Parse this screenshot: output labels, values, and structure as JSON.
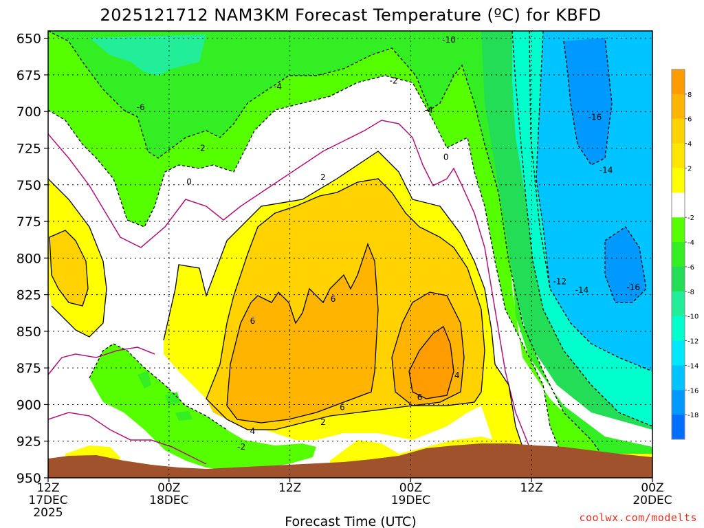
{
  "chart_data": {
    "type": "heatmap",
    "title": "2025121712 NAM3KM Forecast Temperature (ºC) for KBFD",
    "xlabel": "Forecast Time (UTC)",
    "ylabel": "",
    "y_reversed": true,
    "ylim": [
      950,
      645
    ],
    "y_ticks": [
      650,
      675,
      700,
      725,
      750,
      775,
      800,
      825,
      850,
      875,
      900,
      925,
      950
    ],
    "xlim_hours": [
      0,
      60
    ],
    "x_ticks": [
      {
        "h": 0,
        "line1": "12Z",
        "line2": "17DEC",
        "line3": "2025"
      },
      {
        "h": 12,
        "line1": "00Z",
        "line2": "18DEC",
        "line3": ""
      },
      {
        "h": 24,
        "line1": "12Z",
        "line2": "",
        "line3": ""
      },
      {
        "h": 36,
        "line1": "00Z",
        "line2": "19DEC",
        "line3": ""
      },
      {
        "h": 48,
        "line1": "12Z",
        "line2": "",
        "line3": ""
      },
      {
        "h": 60,
        "line1": "00Z",
        "line2": "20DEC",
        "line3": ""
      }
    ],
    "grid": true,
    "colorbar": {
      "position": "right",
      "labels": [
        8,
        6,
        4,
        2,
        -2,
        -4,
        -6,
        -8,
        -10,
        -12,
        -14,
        -16,
        -18
      ],
      "colors": [
        "#ff9c00",
        "#ffb400",
        "#ffd200",
        "#ffe600",
        "#ffff00",
        "#ffffff",
        "#55ff00",
        "#33ee22",
        "#22dd55",
        "#22ee99",
        "#00ffcc",
        "#00e8ff",
        "#00c4ff",
        "#0099ff",
        "#006eff"
      ]
    },
    "contour_labels": [
      {
        "text": "-10",
        "h": 39.8,
        "p": 651
      },
      {
        "text": "-6",
        "h": 9.2,
        "p": 697
      },
      {
        "text": "-4",
        "h": 22.8,
        "p": 683
      },
      {
        "text": "-2",
        "h": 34.3,
        "p": 679
      },
      {
        "text": "-4",
        "h": 37.8,
        "p": 699
      },
      {
        "text": "-2",
        "h": 15.2,
        "p": 725
      },
      {
        "text": "0",
        "h": 14.0,
        "p": 748
      },
      {
        "text": "0",
        "h": 39.5,
        "p": 731
      },
      {
        "text": "2",
        "h": 27.3,
        "p": 745
      },
      {
        "text": "-16",
        "h": 54.3,
        "p": 704
      },
      {
        "text": "-14",
        "h": 55.4,
        "p": 740
      },
      {
        "text": "-12",
        "h": 50.8,
        "p": 816
      },
      {
        "text": "-14",
        "h": 53.0,
        "p": 822
      },
      {
        "text": "-16",
        "h": 58.1,
        "p": 820
      },
      {
        "text": "6",
        "h": 20.3,
        "p": 843
      },
      {
        "text": "6",
        "h": 28.3,
        "p": 828
      },
      {
        "text": "6",
        "h": 29.2,
        "p": 902
      },
      {
        "text": "6",
        "h": 36.9,
        "p": 895
      },
      {
        "text": "4",
        "h": 40.6,
        "p": 880
      },
      {
        "text": "2",
        "h": 27.3,
        "p": 912
      },
      {
        "text": "4",
        "h": 20.3,
        "p": 918
      },
      {
        "text": "-2",
        "h": 19.2,
        "p": 929
      }
    ],
    "terrain_color": "#a0522d"
  },
  "credit": "coolwx.com/modelts"
}
